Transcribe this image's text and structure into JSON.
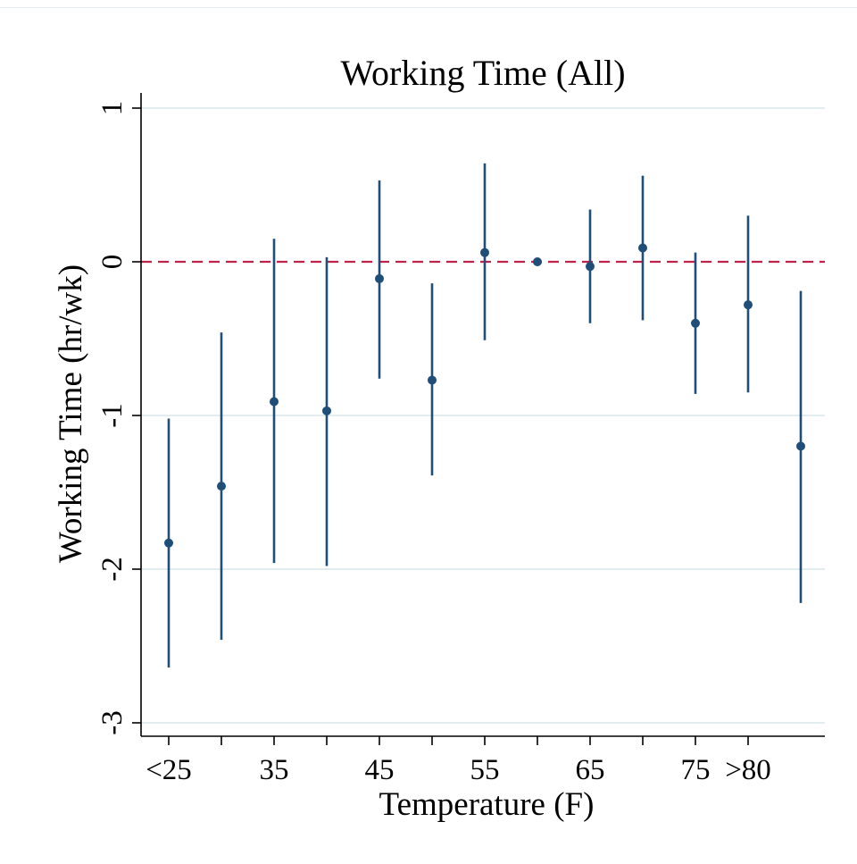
{
  "chart_data": {
    "type": "scatter",
    "title": "Working Time (All)",
    "xlabel": "Temperature (F)",
    "ylabel": "Working Time (hr/wk)",
    "ylim": [
      -3,
      1
    ],
    "yticks": [
      1,
      0,
      -1,
      -2,
      -3
    ],
    "x_tick_values": [
      25,
      30,
      35,
      40,
      45,
      50,
      55,
      60,
      65,
      70,
      75,
      80
    ],
    "x_tick_labels": [
      {
        "x": 25,
        "label": "<25"
      },
      {
        "x": 35,
        "label": "35"
      },
      {
        "x": 45,
        "label": "45"
      },
      {
        "x": 55,
        "label": "55"
      },
      {
        "x": 65,
        "label": "65"
      },
      {
        "x": 75,
        "label": "75"
      },
      {
        "x": 80,
        "label": ">80"
      }
    ],
    "reference_line": {
      "y": 0,
      "style": "dashed"
    },
    "grid": true,
    "series": [
      {
        "points": [
          {
            "x": 25,
            "y": -1.83,
            "lo": -2.64,
            "hi": -1.02
          },
          {
            "x": 30,
            "y": -1.46,
            "lo": -2.46,
            "hi": -0.46
          },
          {
            "x": 35,
            "y": -0.91,
            "lo": -1.96,
            "hi": 0.15
          },
          {
            "x": 40,
            "y": -0.97,
            "lo": -1.98,
            "hi": 0.03
          },
          {
            "x": 45,
            "y": -0.11,
            "lo": -0.76,
            "hi": 0.53
          },
          {
            "x": 50,
            "y": -0.77,
            "lo": -1.39,
            "hi": -0.14
          },
          {
            "x": 55,
            "y": 0.06,
            "lo": -0.51,
            "hi": 0.64
          },
          {
            "x": 60,
            "y": 0.0,
            "lo": 0.0,
            "hi": 0.0
          },
          {
            "x": 65,
            "y": -0.03,
            "lo": -0.4,
            "hi": 0.34
          },
          {
            "x": 70,
            "y": 0.09,
            "lo": -0.38,
            "hi": 0.56
          },
          {
            "x": 75,
            "y": -0.4,
            "lo": -0.86,
            "hi": 0.06
          },
          {
            "x": 80,
            "y": -0.28,
            "lo": -0.85,
            "hi": 0.3
          },
          {
            "x": 85,
            "y": -1.2,
            "lo": -2.22,
            "hi": -0.19
          }
        ]
      }
    ],
    "colors": {
      "point": "#1f4e79",
      "reference": "#c0224a",
      "grid": "#e3ecef",
      "axis": "#000000"
    }
  }
}
